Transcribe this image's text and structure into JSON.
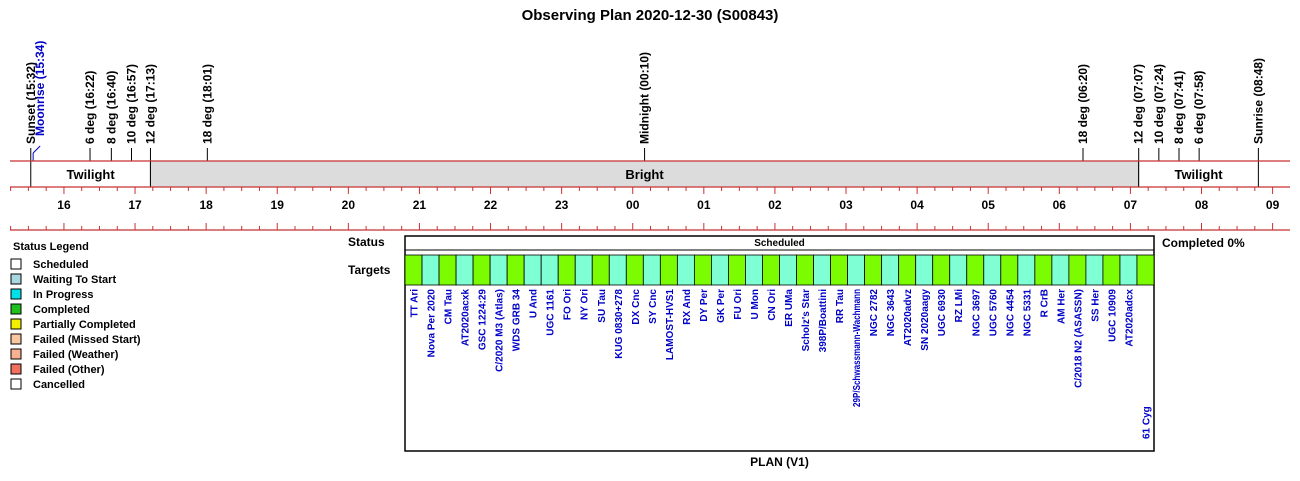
{
  "chart_data": {
    "type": "timeline",
    "title": "Observing Plan 2020-12-30 (S00843)",
    "axis": {
      "start_hour": 15.5,
      "end_hour": 33.0,
      "ticks": [
        "16",
        "17",
        "18",
        "19",
        "20",
        "21",
        "22",
        "23",
        "00",
        "01",
        "02",
        "03",
        "04",
        "05",
        "06",
        "07",
        "08",
        "09"
      ]
    },
    "events": [
      {
        "label": "Sunset (15:32)",
        "time": "15:32",
        "color": "#000000"
      },
      {
        "label": "Moonrise (15:34)",
        "time": "15:34",
        "color": "#0000c8"
      },
      {
        "label": "6 deg (16:22)",
        "time": "16:22",
        "color": "#000000"
      },
      {
        "label": "8 deg (16:40)",
        "time": "16:40",
        "color": "#000000"
      },
      {
        "label": "10 deg (16:57)",
        "time": "16:57",
        "color": "#000000"
      },
      {
        "label": "12 deg (17:13)",
        "time": "17:13",
        "color": "#000000"
      },
      {
        "label": "18 deg (18:01)",
        "time": "18:01",
        "color": "#000000"
      },
      {
        "label": "Midnight (00:10)",
        "time": "00:10",
        "color": "#000000"
      },
      {
        "label": "18 deg (06:20)",
        "time": "06:20",
        "color": "#000000"
      },
      {
        "label": "12 deg (07:07)",
        "time": "07:07",
        "color": "#000000"
      },
      {
        "label": "10 deg (07:24)",
        "time": "07:24",
        "color": "#000000"
      },
      {
        "label": "8 deg (07:41)",
        "time": "07:41",
        "color": "#000000"
      },
      {
        "label": "6 deg (07:58)",
        "time": "07:58",
        "color": "#000000"
      },
      {
        "label": "Sunrise (08:48)",
        "time": "08:48",
        "color": "#000000"
      }
    ],
    "bands": [
      {
        "label": "Twilight",
        "start": "15:32",
        "end": "17:13",
        "fill": "#ffffff"
      },
      {
        "label": "Bright",
        "start": "17:13",
        "end": "07:07",
        "fill": "#dcdcdc"
      },
      {
        "label": "Twilight",
        "start": "07:07",
        "end": "08:48",
        "fill": "#ffffff"
      }
    ],
    "status_label": "Status",
    "status_bar_text": "Scheduled",
    "completed_text": "Completed 0%",
    "targets_label": "Targets",
    "plan_label": "PLAN (V1)",
    "legend": {
      "title": "Status Legend",
      "items": [
        {
          "label": "Scheduled",
          "color": "#ffffff"
        },
        {
          "label": "Waiting To Start",
          "color": "#a8d8e0"
        },
        {
          "label": "In Progress",
          "color": "#00e0e8"
        },
        {
          "label": "Completed",
          "color": "#20c020"
        },
        {
          "label": "Partially Completed",
          "color": "#f0f000"
        },
        {
          "label": "Failed (Missed Start)",
          "color": "#f8c8a0"
        },
        {
          "label": "Failed (Weather)",
          "color": "#f8b090"
        },
        {
          "label": "Failed (Other)",
          "color": "#f07060"
        },
        {
          "label": "Cancelled",
          "color": "#ffffff"
        }
      ]
    },
    "targets": [
      {
        "name": "TT Ari",
        "fill": "#7cfc00"
      },
      {
        "name": "Nova Per 2020",
        "fill": "#7fffd4"
      },
      {
        "name": "CM Tau",
        "fill": "#7cfc00"
      },
      {
        "name": "AT2020acxk",
        "fill": "#7fffd4"
      },
      {
        "name": "GSC 1224:29",
        "fill": "#7cfc00"
      },
      {
        "name": "C/2020 M3 (Atlas)",
        "fill": "#7fffd4"
      },
      {
        "name": "WDS GRB 34",
        "fill": "#7cfc00"
      },
      {
        "name": "U And",
        "fill": "#7fffd4"
      },
      {
        "name": "UGC 1161",
        "fill": "#7fffd4"
      },
      {
        "name": "FO Ori",
        "fill": "#7cfc00"
      },
      {
        "name": "NY Ori",
        "fill": "#7fffd4"
      },
      {
        "name": "SU Tau",
        "fill": "#7cfc00"
      },
      {
        "name": "KUG 0830+278",
        "fill": "#7fffd4"
      },
      {
        "name": "DX Cnc",
        "fill": "#7cfc00"
      },
      {
        "name": "SY Cnc",
        "fill": "#7fffd4"
      },
      {
        "name": "LAMOST-HVS1",
        "fill": "#7cfc00"
      },
      {
        "name": "RX And",
        "fill": "#7fffd4"
      },
      {
        "name": "DY Per",
        "fill": "#7cfc00"
      },
      {
        "name": "GK Per",
        "fill": "#7fffd4"
      },
      {
        "name": "FU Ori",
        "fill": "#7cfc00"
      },
      {
        "name": "U Mon",
        "fill": "#7fffd4"
      },
      {
        "name": "CN Ori",
        "fill": "#7cfc00"
      },
      {
        "name": "ER UMa",
        "fill": "#7fffd4"
      },
      {
        "name": "Scholz's Star",
        "fill": "#7cfc00"
      },
      {
        "name": "398P/Boattini",
        "fill": "#7fffd4"
      },
      {
        "name": "RR Tau",
        "fill": "#7cfc00"
      },
      {
        "name": "29P/Schwassmann-Wachmann",
        "fill": "#7fffd4"
      },
      {
        "name": "NGC 2782",
        "fill": "#7cfc00"
      },
      {
        "name": "NGC 3643",
        "fill": "#7fffd4"
      },
      {
        "name": "AT2020advz",
        "fill": "#7cfc00"
      },
      {
        "name": "SN 2020aagy",
        "fill": "#7fffd4"
      },
      {
        "name": "UGC 6930",
        "fill": "#7cfc00"
      },
      {
        "name": "RZ LMi",
        "fill": "#7fffd4"
      },
      {
        "name": "NGC 3697",
        "fill": "#7cfc00"
      },
      {
        "name": "UGC 5760",
        "fill": "#7fffd4"
      },
      {
        "name": "NGC 4454",
        "fill": "#7cfc00"
      },
      {
        "name": "NGC 5331",
        "fill": "#7fffd4"
      },
      {
        "name": "R CrB",
        "fill": "#7cfc00"
      },
      {
        "name": "AM Her",
        "fill": "#7fffd4"
      },
      {
        "name": "C/2018 N2 (ASASSN)",
        "fill": "#7cfc00"
      },
      {
        "name": "SS Her",
        "fill": "#7fffd4"
      },
      {
        "name": "UGC 10909",
        "fill": "#7cfc00"
      },
      {
        "name": "AT2020adcx",
        "fill": "#7fffd4"
      },
      {
        "name": "61 Cyg",
        "fill": "#7cfc00"
      }
    ]
  }
}
